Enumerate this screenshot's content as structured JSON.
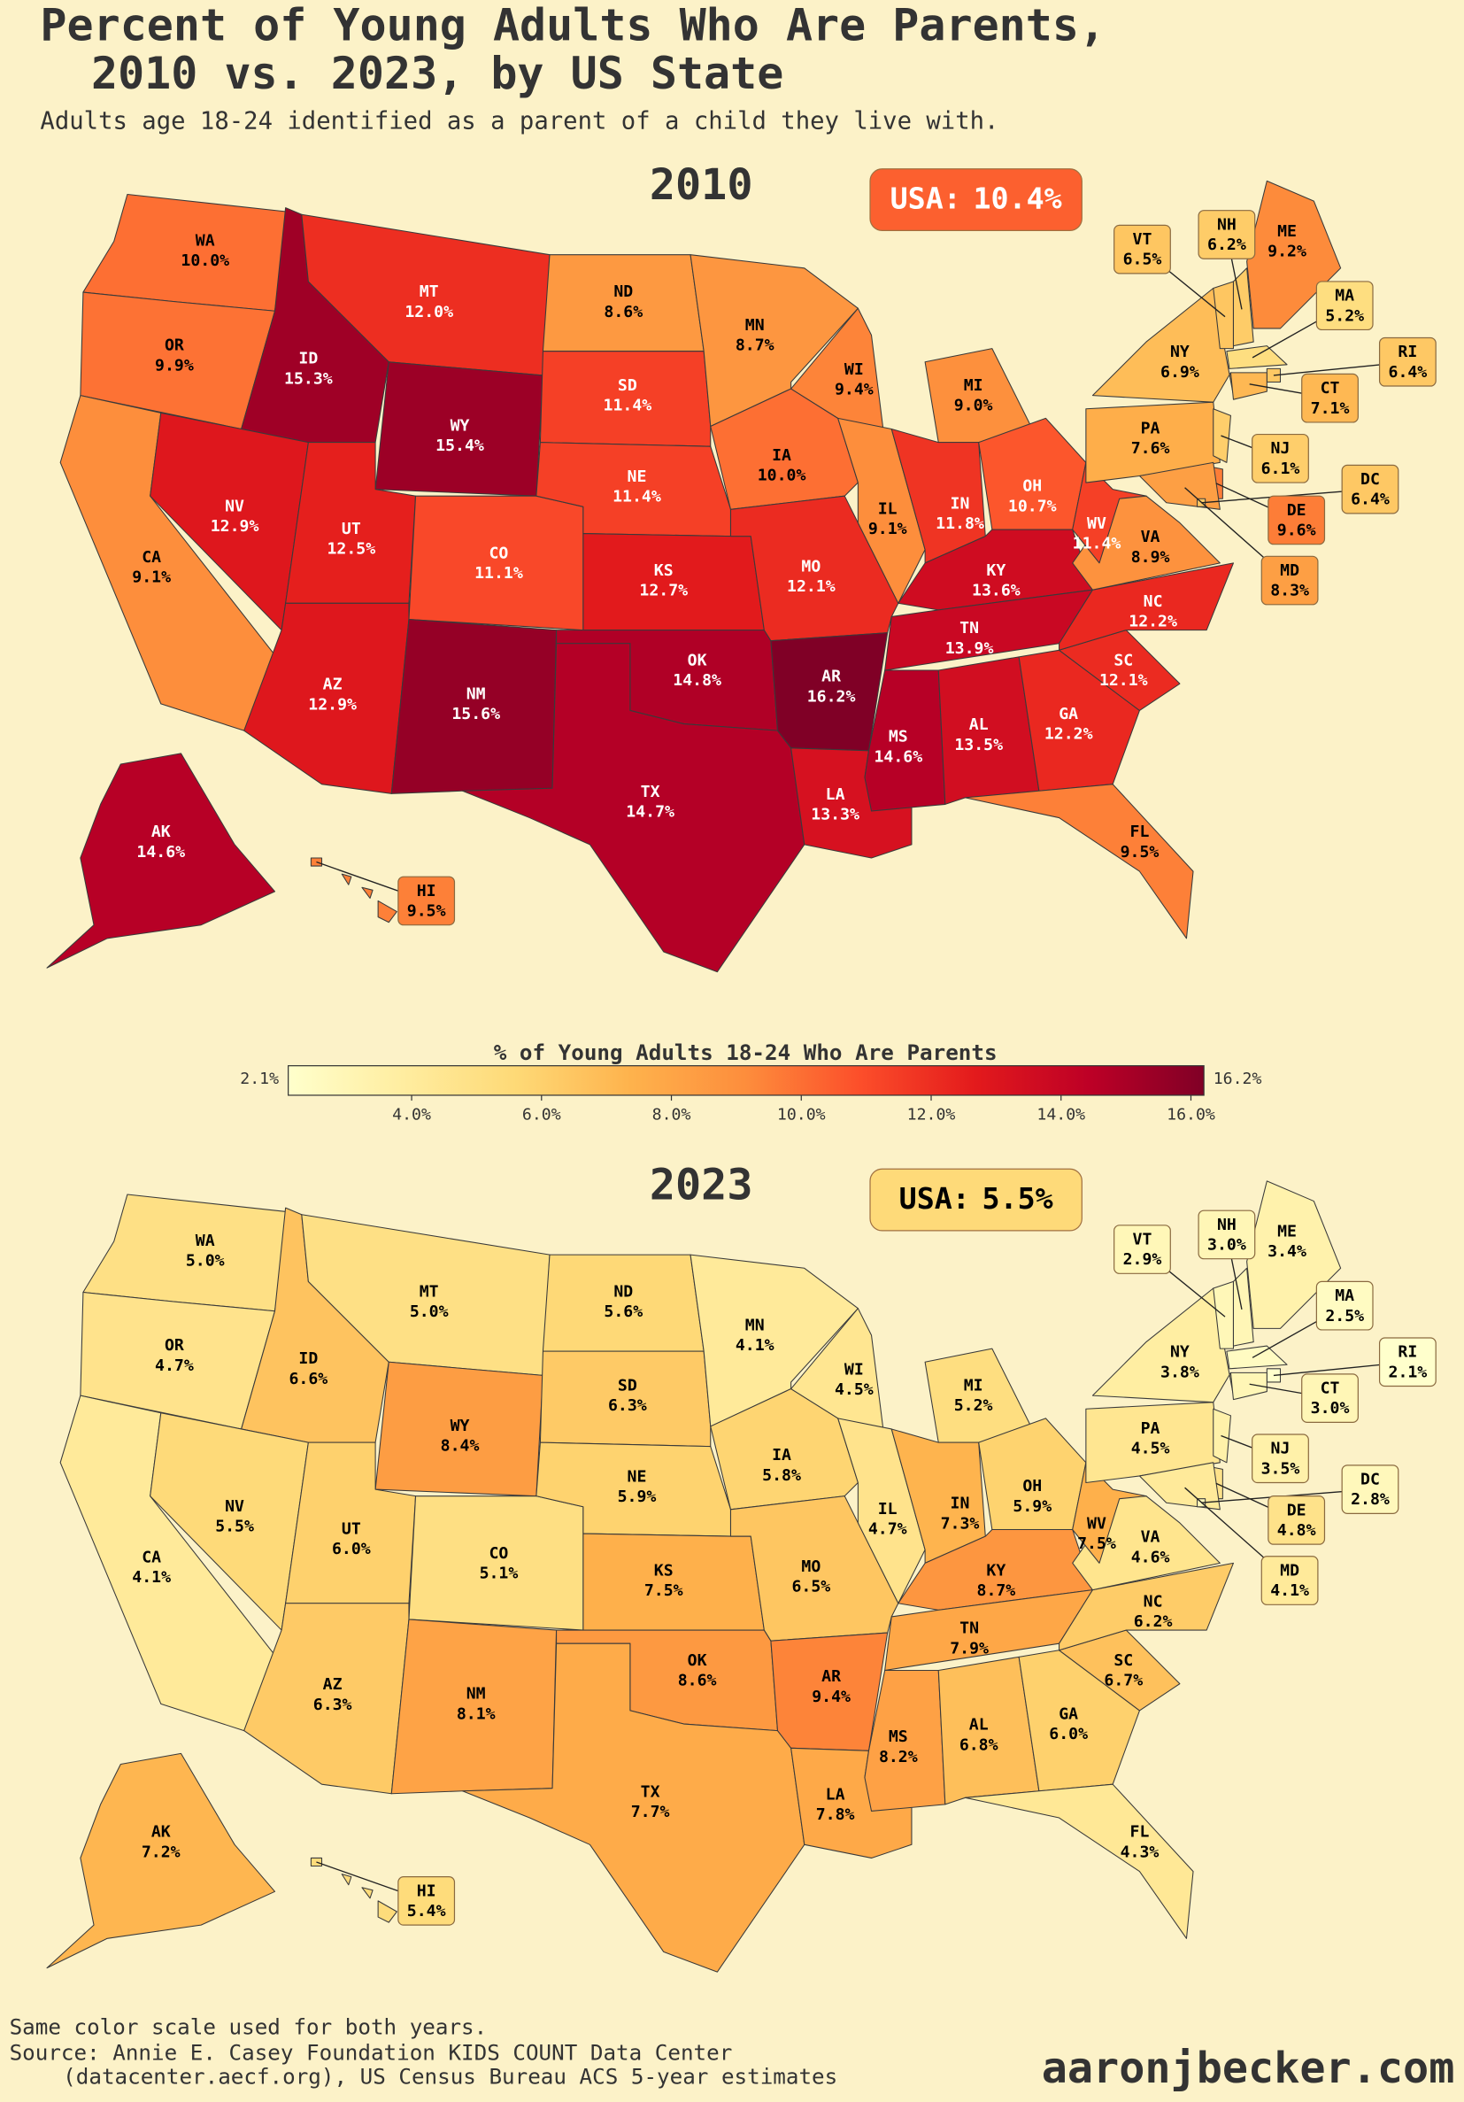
{
  "title": [
    "Percent of Young Adults Who Are Parents,",
    "2010 vs. 2023, by US State"
  ],
  "subtitle": "Adults age 18-24 identified as a parent of a child they live with.",
  "states": [
    "WA",
    "OR",
    "CA",
    "ID",
    "NV",
    "MT",
    "WY",
    "UT",
    "CO",
    "AZ",
    "NM",
    "ND",
    "SD",
    "NE",
    "KS",
    "OK",
    "TX",
    "MN",
    "IA",
    "MO",
    "AR",
    "LA",
    "WI",
    "IL",
    "MI",
    "IN",
    "OH",
    "KY",
    "TN",
    "MS",
    "AL",
    "GA",
    "FL",
    "SC",
    "NC",
    "VA",
    "WV",
    "PA",
    "NY",
    "VT",
    "NH",
    "ME",
    "MA",
    "RI",
    "CT",
    "NJ",
    "DE",
    "MD",
    "DC",
    "AK",
    "HI"
  ],
  "maps": [
    {
      "title": "2010",
      "usa_label": "USA:",
      "usa_value": 10.4,
      "usa_value_label": "10.4%",
      "values": [
        10.0,
        9.9,
        9.1,
        15.3,
        12.9,
        12.0,
        15.4,
        12.5,
        11.1,
        12.9,
        15.6,
        8.6,
        11.4,
        11.4,
        12.7,
        14.8,
        14.7,
        8.7,
        10.0,
        12.1,
        16.2,
        13.3,
        9.4,
        9.1,
        9.0,
        11.8,
        10.7,
        13.6,
        13.9,
        14.6,
        13.5,
        12.2,
        9.5,
        12.1,
        12.2,
        8.9,
        11.4,
        7.6,
        6.9,
        6.5,
        6.2,
        9.2,
        5.2,
        6.4,
        7.1,
        6.1,
        9.6,
        8.3,
        6.4,
        14.6,
        9.5
      ],
      "value_labels": [
        "10.0%",
        "9.9%",
        "9.1%",
        "15.3%",
        "12.9%",
        "12.0%",
        "15.4%",
        "12.5%",
        "11.1%",
        "12.9%",
        "15.6%",
        "8.6%",
        "11.4%",
        "11.4%",
        "12.7%",
        "14.8%",
        "14.7%",
        "8.7%",
        "10.0%",
        "12.1%",
        "16.2%",
        "13.3%",
        "9.4%",
        "9.1%",
        "9.0%",
        "11.8%",
        "10.7%",
        "13.6%",
        "13.9%",
        "14.6%",
        "13.5%",
        "12.2%",
        "9.5%",
        "12.1%",
        "12.2%",
        "8.9%",
        "11.4%",
        "7.6%",
        "6.9%",
        "6.5%",
        "6.2%",
        "9.2%",
        "5.2%",
        "6.4%",
        "7.1%",
        "6.1%",
        "9.6%",
        "8.3%",
        "6.4%",
        "14.6%",
        "9.5%"
      ]
    },
    {
      "title": "2023",
      "usa_label": "USA:",
      "usa_value": 5.5,
      "usa_value_label": "5.5%",
      "values": [
        5.0,
        4.7,
        4.1,
        6.6,
        5.5,
        5.0,
        8.4,
        6.0,
        5.1,
        6.3,
        8.1,
        5.6,
        6.3,
        5.9,
        7.5,
        8.6,
        7.7,
        4.1,
        5.8,
        6.5,
        9.4,
        7.8,
        4.5,
        4.7,
        5.2,
        7.3,
        5.9,
        8.7,
        7.9,
        8.2,
        6.8,
        6.0,
        4.3,
        6.7,
        6.2,
        4.6,
        7.5,
        4.5,
        3.8,
        2.9,
        3.0,
        3.4,
        2.5,
        2.1,
        3.0,
        3.5,
        4.8,
        4.1,
        2.8,
        7.2,
        5.4
      ],
      "value_labels": [
        "5.0%",
        "4.7%",
        "4.1%",
        "6.6%",
        "5.5%",
        "5.0%",
        "8.4%",
        "6.0%",
        "5.1%",
        "6.3%",
        "8.1%",
        "5.6%",
        "6.3%",
        "5.9%",
        "7.5%",
        "8.6%",
        "7.7%",
        "4.1%",
        "5.8%",
        "6.5%",
        "9.4%",
        "7.8%",
        "4.5%",
        "4.7%",
        "5.2%",
        "7.3%",
        "5.9%",
        "8.7%",
        "7.9%",
        "8.2%",
        "6.8%",
        "6.0%",
        "4.3%",
        "6.7%",
        "6.2%",
        "4.6%",
        "7.5%",
        "4.5%",
        "3.8%",
        "2.9%",
        "3.0%",
        "3.4%",
        "2.5%",
        "2.1%",
        "3.0%",
        "3.5%",
        "4.8%",
        "4.1%",
        "2.8%",
        "7.2%",
        "5.4%"
      ]
    }
  ],
  "colorbar": {
    "title": "% of Young Adults 18-24 Who Are Parents",
    "colormap": "YlOrRd",
    "lim": [
      2.1,
      16.2
    ],
    "lim_labels": [
      "2.1%",
      "16.2%"
    ],
    "ticks": [
      {
        "value": 4,
        "label": "4.0%"
      },
      {
        "value": 6,
        "label": "6.0%"
      },
      {
        "value": 8,
        "label": "8.0%"
      },
      {
        "value": 10,
        "label": "10.0%"
      },
      {
        "value": 12,
        "label": "12.0%"
      },
      {
        "value": 14,
        "label": "14.0%"
      },
      {
        "value": 16,
        "label": "16.0%"
      }
    ]
  },
  "notes": [
    "Same color scale used for both years.",
    "Source: Annie E. Casey Foundation KIDS COUNT Data Center",
    "(datacenter.aecf.org), US Census Bureau ACS 5-year estimates"
  ],
  "credit": "aaronjbecker.com"
}
